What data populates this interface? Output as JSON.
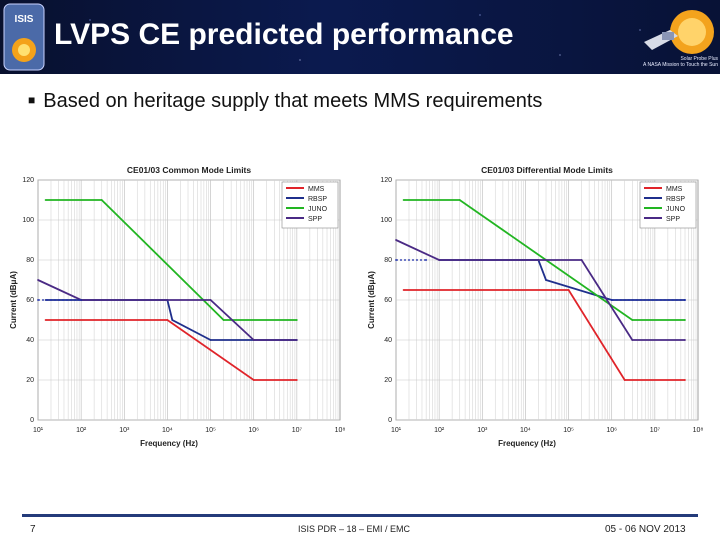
{
  "header": {
    "title": "LVPS CE predicted performance",
    "left_logo_text": "ISIS",
    "right_logo_caption_lines": [
      "Solar Probe Plus",
      "A NASA Mission to Touch the Sun"
    ]
  },
  "bullet": "Based on heritage supply that meets MMS requirements",
  "footer": {
    "page_number": "7",
    "center": "ISIS PDR – 18 – EMI / EMC",
    "date": "05 - 06 NOV 2013"
  },
  "colors": {
    "MMS": "#e0242a",
    "RBSP": "#1f2f8c",
    "JUNO": "#22b522",
    "SPP": "#4a2a85",
    "spec": "#1a2aa8"
  },
  "chart_data": [
    {
      "type": "line",
      "title": "CE01/03 Common Mode Limits",
      "xlabel": "Frequency (Hz)",
      "ylabel": "Current (dBμA)",
      "x_scale": "log",
      "xlim": [
        10,
        100000000
      ],
      "ylim": [
        0,
        120
      ],
      "xticks": [
        "10¹",
        "10²",
        "10³",
        "10⁴",
        "10⁵",
        "10⁶",
        "10⁷",
        "10⁸"
      ],
      "yticks": [
        "0",
        "20",
        "40",
        "60",
        "80",
        "100",
        "120"
      ],
      "grid": true,
      "legend": "top-right",
      "series": [
        {
          "name": "MMS",
          "x": [
            15,
            10000,
            1000000,
            10000000
          ],
          "y": [
            50,
            50,
            20,
            20
          ]
        },
        {
          "name": "RBSP",
          "x": [
            15,
            100,
            10000,
            13000,
            100000,
            1000000,
            10000000
          ],
          "y": [
            60,
            60,
            60,
            50,
            40,
            40,
            40
          ]
        },
        {
          "name": "JUNO",
          "x": [
            15,
            300,
            200000,
            10000000
          ],
          "y": [
            110,
            110,
            50,
            50
          ]
        },
        {
          "name": "SPP",
          "x": [
            10,
            100,
            100000,
            1000000,
            10000000
          ],
          "y": [
            70,
            60,
            60,
            40,
            40
          ]
        },
        {
          "name": "",
          "x": [
            10,
            100
          ],
          "y": [
            60,
            60
          ],
          "style": "dotted"
        }
      ]
    },
    {
      "type": "line",
      "title": "CE01/03 Differential Mode Limits",
      "xlabel": "Frequency (Hz)",
      "ylabel": "Current (dBμA)",
      "x_scale": "log",
      "xlim": [
        10,
        100000000
      ],
      "ylim": [
        0,
        120
      ],
      "xticks": [
        "10¹",
        "10²",
        "10³",
        "10⁴",
        "10⁵",
        "10⁶",
        "10⁷",
        "10⁸"
      ],
      "yticks": [
        "0",
        "20",
        "40",
        "60",
        "80",
        "100",
        "120"
      ],
      "grid": true,
      "legend": "top-right",
      "series": [
        {
          "name": "MMS",
          "x": [
            15,
            100000,
            2000000,
            50000000
          ],
          "y": [
            65,
            65,
            20,
            20
          ]
        },
        {
          "name": "RBSP",
          "x": [
            100,
            20000,
            30000,
            1000000,
            50000000
          ],
          "y": [
            80,
            80,
            70,
            60,
            60
          ]
        },
        {
          "name": "JUNO",
          "x": [
            15,
            300,
            3000000,
            50000000
          ],
          "y": [
            110,
            110,
            50,
            50
          ]
        },
        {
          "name": "SPP",
          "x": [
            10,
            100,
            200000,
            3000000,
            50000000
          ],
          "y": [
            90,
            80,
            80,
            40,
            40
          ]
        },
        {
          "name": "",
          "x": [
            10,
            50
          ],
          "y": [
            80,
            80
          ],
          "style": "dotted"
        },
        {
          "name": "",
          "x": [
            1000000,
            50000000
          ],
          "y": [
            60,
            60
          ],
          "style": "dotted"
        }
      ]
    }
  ]
}
